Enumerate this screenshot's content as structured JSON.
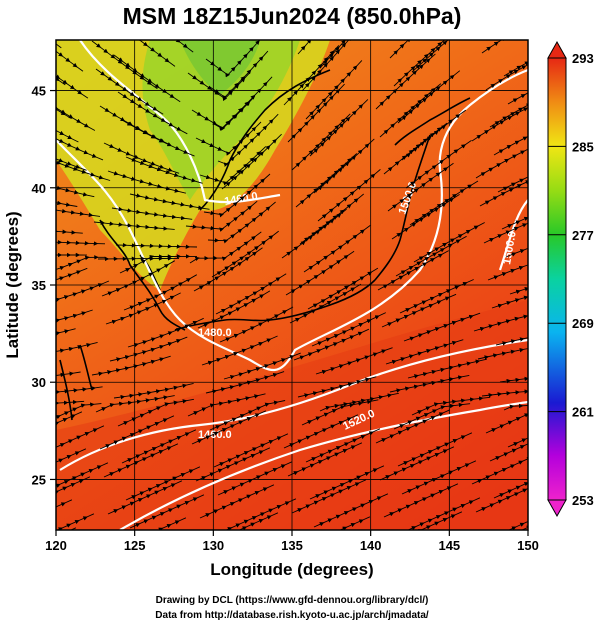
{
  "title": "MSM 18Z15Jun2024 (850.0hPa)",
  "xlabel": "Longitude (degrees)",
  "ylabel": "Latitude  (degrees)",
  "credit_line1": "Drawing by DCL (https://www.gfd-dennou.org/library/dcl/)",
  "credit_line2": "Data from http://database.rish.kyoto-u.ac.jp/arch/jmadata/",
  "map": {
    "lon_range": [
      120,
      150
    ],
    "lat_range": [
      22.4,
      47.6
    ],
    "lon_ticks": [
      120,
      125,
      130,
      135,
      140,
      145,
      150
    ],
    "lon_tick_labels": [
      "120",
      "125",
      "130",
      "135",
      "140",
      "145",
      "150"
    ],
    "lat_ticks": [
      25,
      30,
      35,
      40,
      45
    ],
    "lat_tick_labels": [
      "25",
      "30",
      "35",
      "40",
      "45"
    ],
    "grid": true,
    "field": "temperature (K) shaded, wind streamlines, geopotential height contours (m)"
  },
  "colorbar": {
    "min": 253,
    "max": 293,
    "tick_labels": [
      "293",
      "285",
      "277",
      "269",
      "261",
      "253"
    ],
    "tick_values": [
      293,
      285,
      277,
      269,
      261,
      253
    ]
  },
  "contours": [
    {
      "label": "1480.0"
    },
    {
      "label": "1460.0"
    },
    {
      "label": "1500.0"
    },
    {
      "label": "1520.0"
    },
    {
      "label": "1460.0"
    },
    {
      "label": "1500.0"
    }
  ]
}
